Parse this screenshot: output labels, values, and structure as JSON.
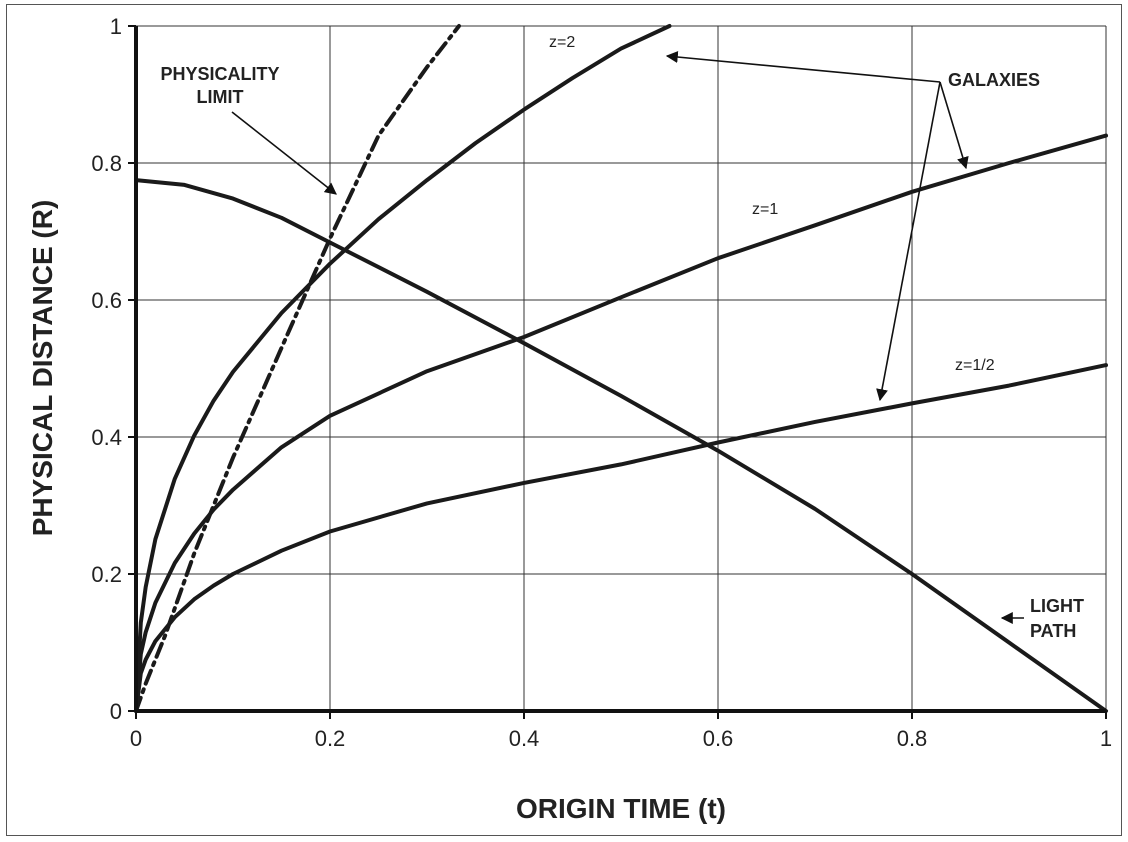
{
  "chart_data": {
    "type": "line",
    "xlabel": "ORIGIN TIME (t)",
    "ylabel": "PHYSICAL DISTANCE (R)",
    "xlim": [
      0,
      1
    ],
    "ylim": [
      0,
      1
    ],
    "grid": true,
    "x_ticks": [
      "0",
      "0.2",
      "0.4",
      "0.6",
      "0.8",
      "1"
    ],
    "y_ticks": [
      "0",
      "0.2",
      "0.4",
      "0.6",
      "0.8",
      "1"
    ],
    "series": [
      {
        "label": "z=2",
        "style": "solid",
        "points": [
          [
            0,
            0
          ],
          [
            0.005,
            0.129
          ],
          [
            0.01,
            0.181
          ],
          [
            0.02,
            0.251
          ],
          [
            0.04,
            0.339
          ],
          [
            0.06,
            0.402
          ],
          [
            0.08,
            0.453
          ],
          [
            0.1,
            0.495
          ],
          [
            0.15,
            0.581
          ],
          [
            0.2,
            0.653
          ],
          [
            0.25,
            0.718
          ],
          [
            0.3,
            0.775
          ],
          [
            0.35,
            0.829
          ],
          [
            0.4,
            0.878
          ],
          [
            0.45,
            0.924
          ],
          [
            0.5,
            0.967
          ],
          [
            0.55,
            1.0
          ]
        ]
      },
      {
        "label": "z=1",
        "style": "solid",
        "points": [
          [
            0,
            0
          ],
          [
            0.005,
            0.083
          ],
          [
            0.01,
            0.115
          ],
          [
            0.02,
            0.158
          ],
          [
            0.04,
            0.216
          ],
          [
            0.06,
            0.259
          ],
          [
            0.08,
            0.294
          ],
          [
            0.1,
            0.323
          ],
          [
            0.15,
            0.385
          ],
          [
            0.2,
            0.431
          ],
          [
            0.3,
            0.496
          ],
          [
            0.4,
            0.546
          ],
          [
            0.5,
            0.604
          ],
          [
            0.6,
            0.661
          ],
          [
            0.7,
            0.709
          ],
          [
            0.8,
            0.758
          ],
          [
            0.9,
            0.8
          ],
          [
            1.0,
            0.84
          ]
        ]
      },
      {
        "label": "z=1/2",
        "style": "solid",
        "points": [
          [
            0,
            0
          ],
          [
            0.005,
            0.055
          ],
          [
            0.01,
            0.075
          ],
          [
            0.02,
            0.102
          ],
          [
            0.04,
            0.137
          ],
          [
            0.06,
            0.163
          ],
          [
            0.08,
            0.183
          ],
          [
            0.1,
            0.2
          ],
          [
            0.15,
            0.234
          ],
          [
            0.2,
            0.262
          ],
          [
            0.3,
            0.303
          ],
          [
            0.4,
            0.333
          ],
          [
            0.5,
            0.36
          ],
          [
            0.6,
            0.392
          ],
          [
            0.7,
            0.422
          ],
          [
            0.8,
            0.449
          ],
          [
            0.9,
            0.475
          ],
          [
            1.0,
            0.505
          ]
        ]
      },
      {
        "label": "PHYSICALITY LIMIT",
        "style": "dash-dot",
        "points": [
          [
            0,
            0
          ],
          [
            0.01,
            0.04
          ],
          [
            0.03,
            0.11
          ],
          [
            0.06,
            0.23
          ],
          [
            0.1,
            0.37
          ],
          [
            0.15,
            0.53
          ],
          [
            0.2,
            0.69
          ],
          [
            0.25,
            0.84
          ],
          [
            0.3,
            0.94
          ],
          [
            0.333,
            1.0
          ]
        ]
      },
      {
        "label": "LIGHT PATH",
        "style": "solid",
        "points": [
          [
            0,
            0.775
          ],
          [
            0.05,
            0.768
          ],
          [
            0.1,
            0.748
          ],
          [
            0.15,
            0.72
          ],
          [
            0.2,
            0.684
          ],
          [
            0.3,
            0.612
          ],
          [
            0.4,
            0.537
          ],
          [
            0.5,
            0.46
          ],
          [
            0.6,
            0.38
          ],
          [
            0.7,
            0.295
          ],
          [
            0.8,
            0.2
          ],
          [
            0.9,
            0.1
          ],
          [
            1.0,
            0.0
          ]
        ]
      }
    ],
    "annotations": {
      "physicality": [
        "PHYSICALITY",
        "LIMIT"
      ],
      "galaxies": "GALAXIES",
      "light_path": [
        "LIGHT",
        "PATH"
      ]
    }
  }
}
